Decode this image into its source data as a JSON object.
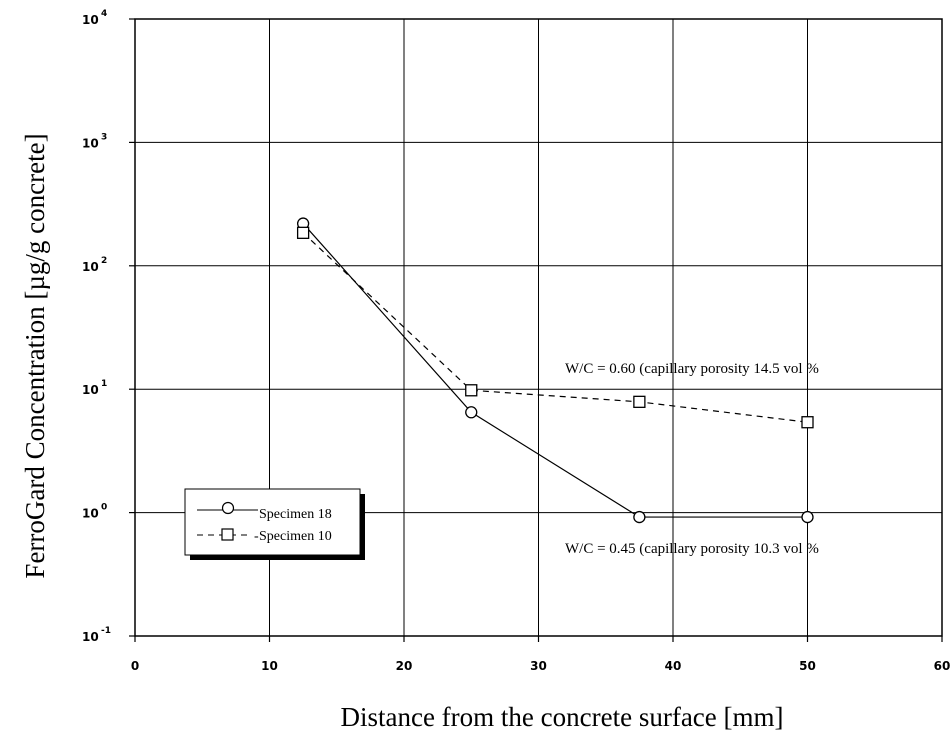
{
  "chart_data": {
    "type": "line",
    "title": "",
    "xlabel": "Distance from the concrete surface [mm]",
    "ylabel": "FerroGard Concentration [µg/g concrete]",
    "xlim": [
      0,
      60
    ],
    "ylim": [
      0.1,
      10000
    ],
    "yscale": "log",
    "grid": true,
    "x_ticks": [
      "0",
      "10",
      "20",
      "30",
      "40",
      "50",
      "60"
    ],
    "y_ticks": [
      {
        "base": "10",
        "exp": "4"
      },
      {
        "base": "10",
        "exp": "3"
      },
      {
        "base": "10",
        "exp": "2"
      },
      {
        "base": "10",
        "exp": "1"
      },
      {
        "base": "10",
        "exp": "0"
      },
      {
        "base": "10",
        "exp": "-1"
      }
    ],
    "legend_position": "left",
    "series": [
      {
        "name": "Specimen 18",
        "marker": "circle",
        "line": "solid",
        "x": [
          12.5,
          25,
          37.5,
          50
        ],
        "y": [
          220,
          6.5,
          0.92,
          0.92
        ]
      },
      {
        "name": "Specimen 10",
        "marker": "square",
        "line": "dashed",
        "x": [
          12.5,
          25,
          37.5,
          50
        ],
        "y": [
          185,
          9.8,
          7.9,
          5.4
        ]
      }
    ],
    "annotations": [
      "W/C = 0.60 (capillary porosity 14.5 vol %",
      "W/C = 0.45 (capillary porosity 10.3 vol %"
    ]
  }
}
